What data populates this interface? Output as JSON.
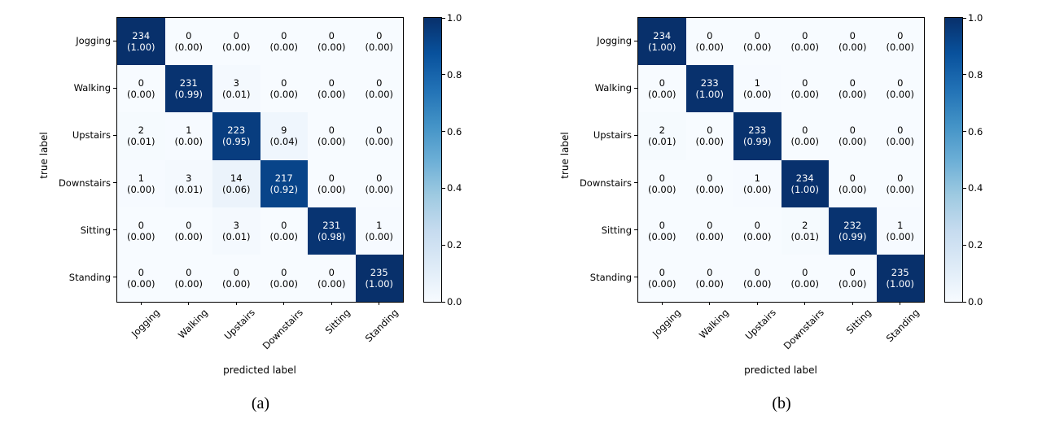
{
  "chart_data": [
    {
      "type": "heatmap",
      "caption": "(a)",
      "xlabel": "predicted label",
      "ylabel": "true label",
      "classes": [
        "Jogging",
        "Walking",
        "Upstairs",
        "Downstairs",
        "Sitting",
        "Standing"
      ],
      "colormap": "Blues",
      "colorbar_ticks": [
        "0.0",
        "0.2",
        "0.4",
        "0.6",
        "0.8",
        "1.0"
      ],
      "colorbar_range": [
        0.0,
        1.0
      ],
      "counts": [
        [
          234,
          0,
          0,
          0,
          0,
          0
        ],
        [
          0,
          231,
          3,
          0,
          0,
          0
        ],
        [
          2,
          1,
          223,
          9,
          0,
          0
        ],
        [
          1,
          3,
          14,
          217,
          0,
          0
        ],
        [
          0,
          0,
          3,
          0,
          231,
          1
        ],
        [
          0,
          0,
          0,
          0,
          0,
          235
        ]
      ],
      "fractions": [
        [
          "1.00",
          "0.00",
          "0.00",
          "0.00",
          "0.00",
          "0.00"
        ],
        [
          "0.00",
          "0.99",
          "0.01",
          "0.00",
          "0.00",
          "0.00"
        ],
        [
          "0.01",
          "0.00",
          "0.95",
          "0.04",
          "0.00",
          "0.00"
        ],
        [
          "0.00",
          "0.01",
          "0.06",
          "0.92",
          "0.00",
          "0.00"
        ],
        [
          "0.00",
          "0.00",
          "0.01",
          "0.00",
          "0.98",
          "0.00"
        ],
        [
          "0.00",
          "0.00",
          "0.00",
          "0.00",
          "0.00",
          "1.00"
        ]
      ]
    },
    {
      "type": "heatmap",
      "caption": "(b)",
      "xlabel": "predicted label",
      "ylabel": "true label",
      "classes": [
        "Jogging",
        "Walking",
        "Upstairs",
        "Downstairs",
        "Sitting",
        "Standing"
      ],
      "colormap": "Blues",
      "colorbar_ticks": [
        "0.0",
        "0.2",
        "0.4",
        "0.6",
        "0.8",
        "1.0"
      ],
      "colorbar_range": [
        0.0,
        1.0
      ],
      "counts": [
        [
          234,
          0,
          0,
          0,
          0,
          0
        ],
        [
          0,
          233,
          1,
          0,
          0,
          0
        ],
        [
          2,
          0,
          233,
          0,
          0,
          0
        ],
        [
          0,
          0,
          1,
          234,
          0,
          0
        ],
        [
          0,
          0,
          0,
          2,
          232,
          1
        ],
        [
          0,
          0,
          0,
          0,
          0,
          235
        ]
      ],
      "fractions": [
        [
          "1.00",
          "0.00",
          "0.00",
          "0.00",
          "0.00",
          "0.00"
        ],
        [
          "0.00",
          "1.00",
          "0.00",
          "0.00",
          "0.00",
          "0.00"
        ],
        [
          "0.01",
          "0.00",
          "0.99",
          "0.00",
          "0.00",
          "0.00"
        ],
        [
          "0.00",
          "0.00",
          "0.00",
          "1.00",
          "0.00",
          "0.00"
        ],
        [
          "0.00",
          "0.00",
          "0.00",
          "0.01",
          "0.99",
          "0.00"
        ],
        [
          "0.00",
          "0.00",
          "0.00",
          "0.00",
          "0.00",
          "1.00"
        ]
      ]
    }
  ],
  "colors": {
    "cmap_low": "#f7fbff",
    "cmap_high": "#08306b",
    "axis": "#000000",
    "cell_text_dark": "#000000",
    "cell_text_light": "#ffffff"
  }
}
